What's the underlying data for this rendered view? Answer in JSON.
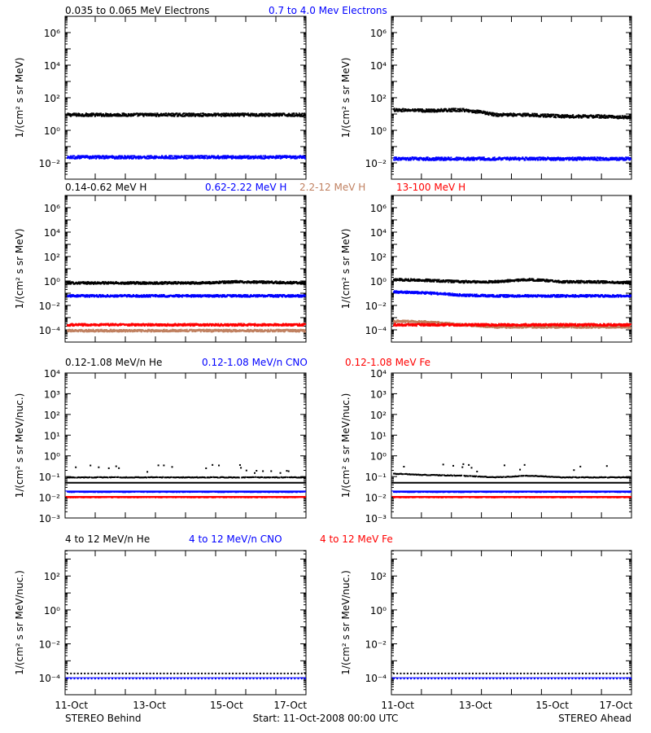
{
  "colors": {
    "black": "#000000",
    "blue": "#0000ff",
    "red": "#ff0000",
    "tan": "#c08060"
  },
  "rows": [
    {
      "labels": [
        {
          "text": "0.035 to 0.065 MeV Electrons",
          "color": "#000000"
        },
        {
          "text": "0.7 to 4.0 Mev Electrons",
          "color": "#0000ff"
        }
      ],
      "ylabel": "1/(cm² s sr MeV)",
      "ylim": [
        -3,
        7
      ],
      "yticks": [
        {
          "e": -2,
          "label": "10⁻²"
        },
        {
          "e": 0,
          "label": "10⁰"
        },
        {
          "e": 2,
          "label": "10²"
        },
        {
          "e": 4,
          "label": "10⁴"
        },
        {
          "e": 6,
          "label": "10⁶"
        }
      ]
    },
    {
      "labels": [
        {
          "text": "0.14-0.62 MeV H",
          "color": "#000000"
        },
        {
          "text": "0.62-2.22 MeV H",
          "color": "#0000ff"
        },
        {
          "text": "2.2-12 MeV H",
          "color": "#c08060"
        },
        {
          "text": "13-100 MeV H",
          "color": "#ff0000"
        }
      ],
      "ylabel": "1/(cm² s sr MeV)",
      "ylim": [
        -5,
        7
      ],
      "yticks": [
        {
          "e": -4,
          "label": "10⁻⁴"
        },
        {
          "e": -2,
          "label": "10⁻²"
        },
        {
          "e": 0,
          "label": "10⁰"
        },
        {
          "e": 2,
          "label": "10²"
        },
        {
          "e": 4,
          "label": "10⁴"
        },
        {
          "e": 6,
          "label": "10⁶"
        }
      ]
    },
    {
      "labels": [
        {
          "text": "0.12-1.08 MeV/n He",
          "color": "#000000"
        },
        {
          "text": "0.12-1.08 MeV/n CNO",
          "color": "#0000ff"
        },
        {
          "text": "0.12-1.08 MeV Fe",
          "color": "#ff0000"
        }
      ],
      "ylabel": "1/(cm² s sr MeV/nuc.)",
      "ylim": [
        -3,
        4
      ],
      "yticks": [
        {
          "e": -3,
          "label": "10⁻³"
        },
        {
          "e": -2,
          "label": "10⁻²"
        },
        {
          "e": -1,
          "label": "10⁻¹"
        },
        {
          "e": 0,
          "label": "10⁰"
        },
        {
          "e": 1,
          "label": "10¹"
        },
        {
          "e": 2,
          "label": "10²"
        },
        {
          "e": 3,
          "label": "10³"
        },
        {
          "e": 4,
          "label": "10⁴"
        }
      ]
    },
    {
      "labels": [
        {
          "text": "4 to 12 MeV/n He",
          "color": "#000000"
        },
        {
          "text": "4 to 12 MeV/n CNO",
          "color": "#0000ff"
        },
        {
          "text": "4 to 12 MeV Fe",
          "color": "#ff0000"
        }
      ],
      "ylabel": "1/(cm² s sr MeV/nuc.)",
      "ylim": [
        -5,
        3.5
      ],
      "yticks": [
        {
          "e": -4,
          "label": "10⁻⁴"
        },
        {
          "e": -2,
          "label": "10⁻²"
        },
        {
          "e": 0,
          "label": "10⁰"
        },
        {
          "e": 2,
          "label": "10²"
        }
      ]
    }
  ],
  "xaxis": {
    "ticks": [
      "11-Oct",
      "13-Oct",
      "15-Oct",
      "17-Oct"
    ]
  },
  "footer": {
    "left": "STEREO Behind",
    "center": "Start: 11-Oct-2008 00:00 UTC",
    "right": "STEREO Ahead"
  },
  "chart_data": [
    {
      "type": "scatter",
      "row": 1,
      "spacecraft": "STEREO Behind",
      "yscale": "log",
      "series": [
        {
          "name": "0.035 to 0.065 MeV Electrons",
          "color": "#000000",
          "values": [
            10,
            10,
            10,
            10,
            10,
            10,
            10,
            10
          ]
        },
        {
          "name": "0.7 to 4.0 Mev Electrons",
          "color": "#0000ff",
          "values": [
            0.025,
            0.025,
            0.025,
            0.025,
            0.025,
            0.025,
            0.025,
            0.025
          ]
        }
      ]
    },
    {
      "type": "scatter",
      "row": 1,
      "spacecraft": "STEREO Ahead",
      "yscale": "log",
      "series": [
        {
          "name": "0.035 to 0.065 MeV Electrons",
          "color": "#000000",
          "values": [
            20,
            18,
            20,
            10,
            10,
            8,
            8,
            7
          ]
        },
        {
          "name": "0.7 to 4.0 Mev Electrons",
          "color": "#0000ff",
          "values": [
            0.02,
            0.02,
            0.02,
            0.02,
            0.02,
            0.02,
            0.02,
            0.02
          ]
        }
      ]
    },
    {
      "type": "scatter",
      "row": 2,
      "spacecraft": "STEREO Behind",
      "yscale": "log",
      "series": [
        {
          "name": "0.14-0.62 MeV H",
          "color": "#000000",
          "values": [
            0.8,
            0.8,
            0.8,
            0.8,
            0.8,
            1.0,
            0.9,
            0.8
          ]
        },
        {
          "name": "0.62-2.22 MeV H",
          "color": "#0000ff",
          "values": [
            0.07,
            0.07,
            0.07,
            0.07,
            0.07,
            0.07,
            0.07,
            0.07
          ]
        },
        {
          "name": "2.2-12 MeV H",
          "color": "#c08060",
          "values": [
            0.0001,
            0.0001,
            0.0001,
            0.0001,
            0.0001,
            0.0001,
            0.0001,
            0.0001
          ]
        },
        {
          "name": "13-100 MeV H",
          "color": "#ff0000",
          "values": [
            0.0003,
            0.0003,
            0.0003,
            0.0003,
            0.0003,
            0.0003,
            0.0003,
            0.0003
          ]
        }
      ]
    },
    {
      "type": "scatter",
      "row": 2,
      "spacecraft": "STEREO Ahead",
      "yscale": "log",
      "series": [
        {
          "name": "0.14-0.62 MeV H",
          "color": "#000000",
          "values": [
            1.5,
            1.3,
            1.0,
            1.0,
            1.5,
            1.0,
            1.0,
            0.8
          ]
        },
        {
          "name": "0.62-2.22 MeV H",
          "color": "#0000ff",
          "values": [
            0.15,
            0.12,
            0.08,
            0.07,
            0.07,
            0.07,
            0.07,
            0.07
          ]
        },
        {
          "name": "2.2-12 MeV H",
          "color": "#c08060",
          "values": [
            0.0006,
            0.0005,
            0.0003,
            0.0002,
            0.0002,
            0.0002,
            0.0002,
            0.0002
          ]
        },
        {
          "name": "13-100 MeV H",
          "color": "#ff0000",
          "values": [
            0.0003,
            0.0003,
            0.0003,
            0.0003,
            0.0003,
            0.0003,
            0.0003,
            0.0003
          ]
        }
      ]
    },
    {
      "type": "scatter",
      "row": 3,
      "spacecraft": "STEREO Behind",
      "yscale": "log",
      "series": [
        {
          "name": "0.12-1.08 MeV/n He",
          "color": "#000000",
          "values": [
            0.1,
            0.1,
            0.1,
            0.1,
            0.1,
            0.1,
            0.1,
            0.1
          ]
        },
        {
          "name": "0.12-1.08 MeV/n CNO",
          "color": "#0000ff",
          "values": [
            0.02,
            0.02,
            0.02,
            0.02,
            0.02,
            0.02,
            0.02,
            0.02
          ]
        },
        {
          "name": "0.12-1.08 MeV Fe",
          "color": "#ff0000",
          "values": [
            0.011,
            0.011,
            0.011,
            0.011,
            0.011,
            0.011,
            0.011,
            0.011
          ]
        }
      ]
    },
    {
      "type": "scatter",
      "row": 3,
      "spacecraft": "STEREO Ahead",
      "yscale": "log",
      "series": [
        {
          "name": "0.12-1.08 MeV/n He",
          "color": "#000000",
          "values": [
            0.15,
            0.13,
            0.12,
            0.1,
            0.12,
            0.1,
            0.1,
            0.1
          ]
        },
        {
          "name": "0.12-1.08 MeV/n CNO",
          "color": "#0000ff",
          "values": [
            0.02,
            0.02,
            0.02,
            0.02,
            0.02,
            0.02,
            0.02,
            0.02
          ]
        },
        {
          "name": "0.12-1.08 MeV Fe",
          "color": "#ff0000",
          "values": [
            0.011,
            0.011,
            0.011,
            0.011,
            0.011,
            0.011,
            0.011,
            0.011
          ]
        }
      ]
    },
    {
      "type": "scatter",
      "row": 4,
      "spacecraft": "STEREO Behind",
      "yscale": "log",
      "series": [
        {
          "name": "4 to 12 MeV/n He",
          "color": "#000000",
          "values": [
            0.0002,
            0.0002,
            0.0002,
            0.0002,
            0.0002,
            0.0002,
            0.0002,
            0.0002
          ]
        },
        {
          "name": "4 to 12 MeV/n CNO",
          "color": "#0000ff",
          "values": [
            0.0001,
            0.0001,
            0.0001,
            0.0001,
            0.0001,
            0.0001,
            0.0001,
            0.0001
          ]
        },
        {
          "name": "4 to 12 MeV Fe",
          "color": "#ff0000",
          "values": []
        }
      ]
    },
    {
      "type": "scatter",
      "row": 4,
      "spacecraft": "STEREO Ahead",
      "yscale": "log",
      "series": [
        {
          "name": "4 to 12 MeV/n He",
          "color": "#000000",
          "values": [
            0.0002,
            0.0002,
            0.0002,
            0.0002,
            0.0002,
            0.0002,
            0.0002,
            0.0002
          ]
        },
        {
          "name": "4 to 12 MeV/n CNO",
          "color": "#0000ff",
          "values": [
            0.0001,
            0.0001,
            0.0001,
            0.0001,
            0.0001,
            0.0001,
            0.0001,
            0.0001
          ]
        },
        {
          "name": "4 to 12 MeV Fe",
          "color": "#ff0000",
          "values": []
        }
      ]
    }
  ]
}
